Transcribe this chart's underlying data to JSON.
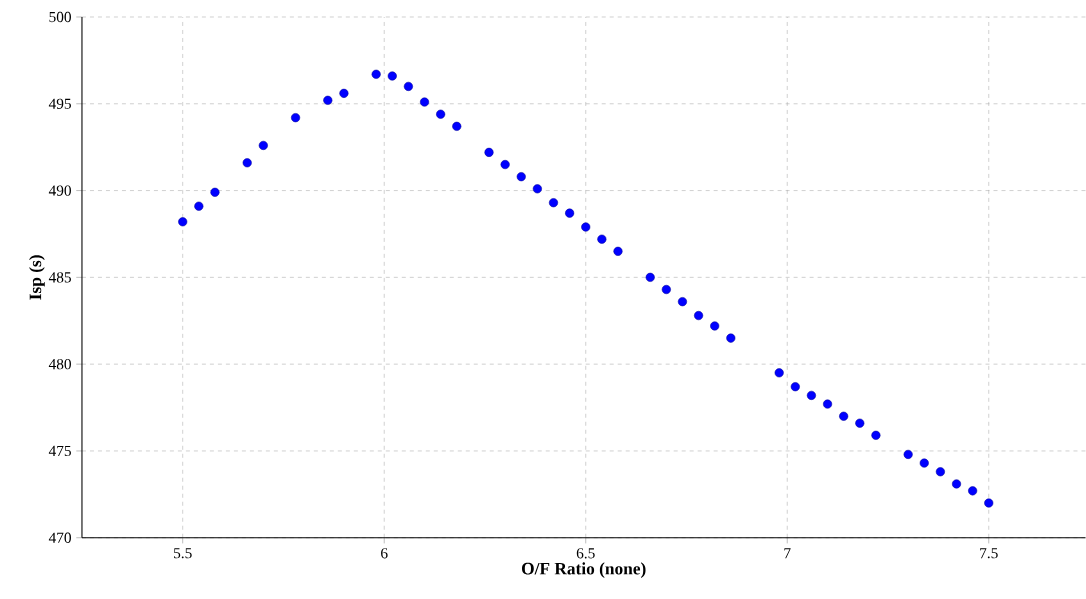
{
  "chart_data": {
    "type": "scatter",
    "xlabel": "O/F Ratio (none)",
    "ylabel": "Isp (s)",
    "x": [
      5.5,
      5.54,
      5.58,
      5.66,
      5.7,
      5.78,
      5.86,
      5.9,
      5.98,
      6.02,
      6.06,
      6.1,
      6.14,
      6.18,
      6.26,
      6.3,
      6.34,
      6.38,
      6.42,
      6.46,
      6.5,
      6.54,
      6.58,
      6.66,
      6.7,
      6.74,
      6.78,
      6.82,
      6.86,
      6.98,
      7.02,
      7.06,
      7.1,
      7.14,
      7.18,
      7.22,
      7.3,
      7.34,
      7.38,
      7.42,
      7.46,
      7.5
    ],
    "values": [
      488.2,
      489.1,
      489.9,
      491.6,
      492.6,
      494.2,
      495.2,
      495.6,
      496.7,
      496.6,
      496.0,
      495.1,
      494.4,
      493.7,
      492.2,
      491.5,
      490.8,
      490.1,
      489.3,
      488.7,
      487.9,
      487.2,
      486.5,
      485.0,
      484.3,
      483.6,
      482.8,
      482.2,
      481.5,
      479.5,
      478.7,
      478.2,
      477.7,
      477.0,
      476.6,
      475.9,
      474.8,
      474.3,
      473.8,
      473.1,
      472.7,
      472.0
    ],
    "color": "#0000ff",
    "marker": "circle",
    "grid": true,
    "xlim": [
      5.25,
      7.74
    ],
    "ylim": [
      470,
      500
    ],
    "xticks": [
      5.5,
      6,
      6.5,
      7,
      7.5
    ],
    "yticks": [
      470,
      475,
      480,
      485,
      490,
      495,
      500
    ]
  }
}
